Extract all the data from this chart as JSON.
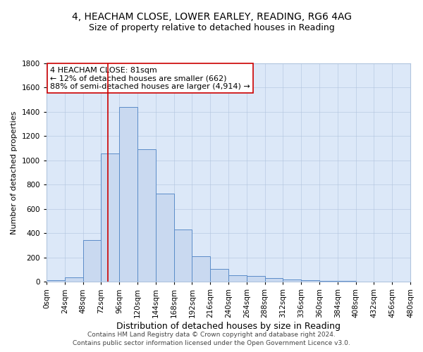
{
  "title1": "4, HEACHAM CLOSE, LOWER EARLEY, READING, RG6 4AG",
  "title2": "Size of property relative to detached houses in Reading",
  "xlabel": "Distribution of detached houses by size in Reading",
  "ylabel": "Number of detached properties",
  "bin_edges": [
    0,
    24,
    48,
    72,
    96,
    120,
    144,
    168,
    192,
    216,
    240,
    264,
    288,
    312,
    336,
    360,
    384,
    408,
    432,
    456,
    480
  ],
  "bar_heights": [
    10,
    35,
    340,
    1055,
    1440,
    1090,
    725,
    430,
    210,
    105,
    55,
    45,
    28,
    15,
    10,
    5,
    3,
    2,
    1,
    1
  ],
  "bar_facecolor": "#c9d9f0",
  "bar_edgecolor": "#5b8cc8",
  "vline_x": 81,
  "vline_color": "#cc0000",
  "annotation_line1": "4 HEACHAM CLOSE: 81sqm",
  "annotation_line2": "← 12% of detached houses are smaller (662)",
  "annotation_line3": "88% of semi-detached houses are larger (4,914) →",
  "annotation_box_edgecolor": "#cc0000",
  "annotation_box_facecolor": "#ffffff",
  "ylim": [
    0,
    1800
  ],
  "yticks": [
    0,
    200,
    400,
    600,
    800,
    1000,
    1200,
    1400,
    1600,
    1800
  ],
  "xtick_labels": [
    "0sqm",
    "24sqm",
    "48sqm",
    "72sqm",
    "96sqm",
    "120sqm",
    "144sqm",
    "168sqm",
    "192sqm",
    "216sqm",
    "240sqm",
    "264sqm",
    "288sqm",
    "312sqm",
    "336sqm",
    "360sqm",
    "384sqm",
    "408sqm",
    "432sqm",
    "456sqm",
    "480sqm"
  ],
  "footer1": "Contains HM Land Registry data © Crown copyright and database right 2024.",
  "footer2": "Contains public sector information licensed under the Open Government Licence v3.0.",
  "plot_bg_color": "#dce8f8",
  "title1_fontsize": 10,
  "title2_fontsize": 9,
  "xlabel_fontsize": 9,
  "ylabel_fontsize": 8,
  "tick_fontsize": 7.5,
  "footer_fontsize": 6.5,
  "annot_fontsize": 8
}
